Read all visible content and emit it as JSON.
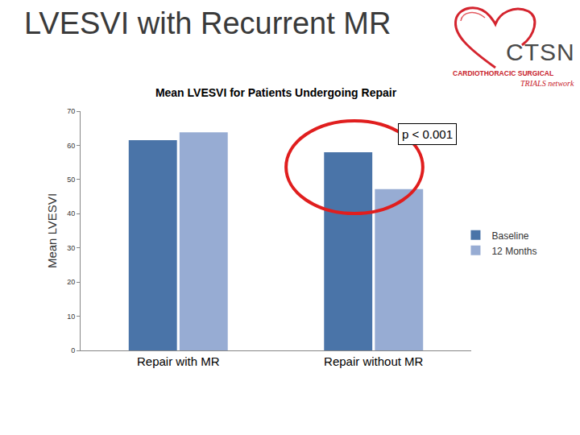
{
  "slide": {
    "title": "LVESVI with Recurrent MR",
    "logo": {
      "name": "CTSN",
      "lines": [
        "CARDIOTHORACIC SURGICAL",
        "TRIALS network"
      ]
    }
  },
  "chart_data": {
    "type": "bar",
    "title": "Mean LVESVI for Patients Undergoing Repair",
    "y_label": "Mean LVESVI",
    "categories": [
      "Repair with MR",
      "Repair without MR"
    ],
    "series": [
      {
        "name": "Baseline",
        "color": "#4a74a8",
        "values": [
          61.5,
          58
        ]
      },
      {
        "name": "12 Months",
        "color": "#97acd3",
        "values": [
          63.8,
          47.2
        ]
      }
    ],
    "ylim": [
      0,
      70
    ],
    "yticks": [
      0,
      10,
      20,
      30,
      40,
      50,
      60,
      70
    ],
    "grid": false,
    "legend": "right",
    "annotations": [
      "p < 0.001"
    ]
  }
}
